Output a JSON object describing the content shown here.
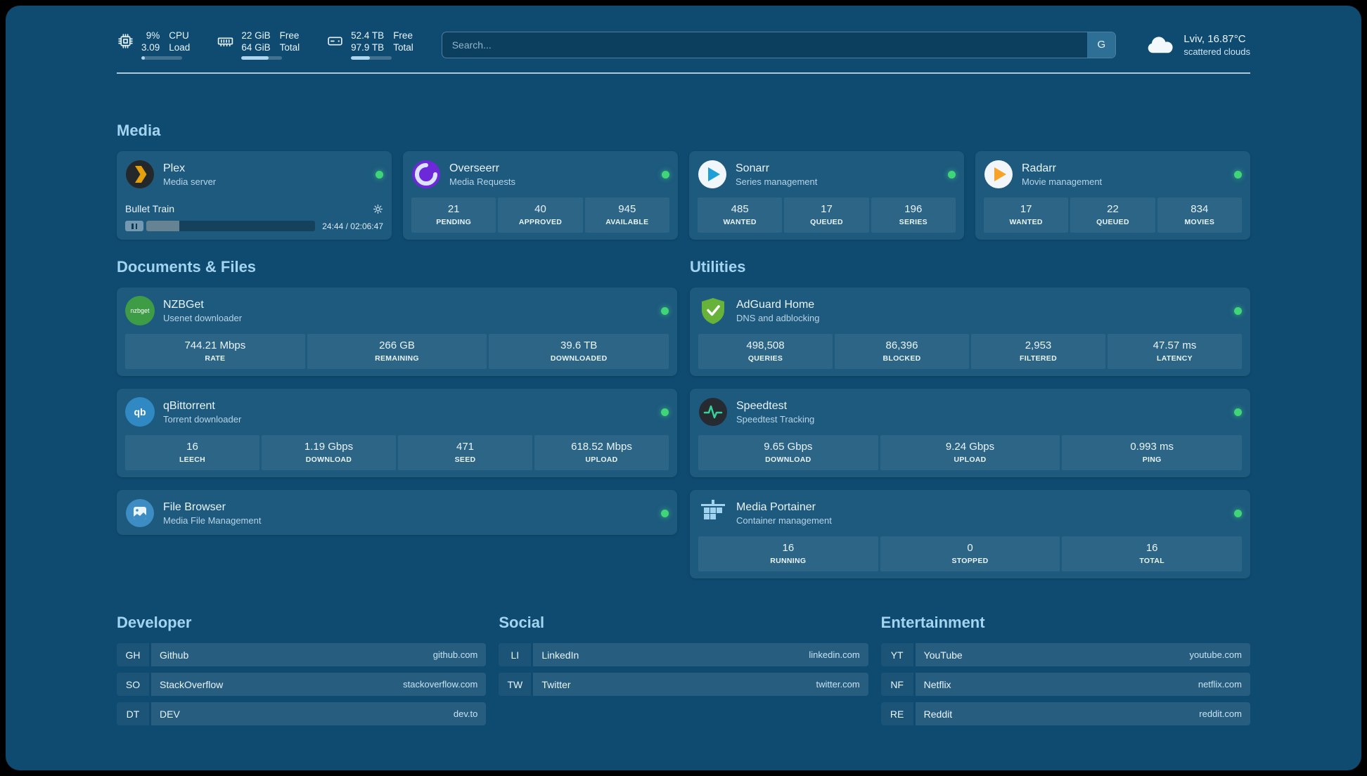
{
  "topbar": {
    "cpu": {
      "value1": "9%",
      "value2": "3.09",
      "label1": "CPU",
      "label2": "Load",
      "percent": 9
    },
    "memory": {
      "value1": "22 GiB",
      "value2": "64 GiB",
      "label1": "Free",
      "label2": "Total",
      "percent": 66
    },
    "disk": {
      "value1": "52.4 TB",
      "value2": "97.9 TB",
      "label1": "Free",
      "label2": "Total",
      "percent": 47
    },
    "search": {
      "placeholder": "Search...",
      "button_label": "G"
    },
    "weather": {
      "line1": "Lviv, 16.87°C",
      "line2": "scattered clouds"
    }
  },
  "media": {
    "title": "Media",
    "plex": {
      "name": "Plex",
      "desc": "Media server",
      "now_playing": "Bullet Train",
      "time": "24:44 / 02:06:47",
      "progress_percent": 19.5
    },
    "overseerr": {
      "name": "Overseerr",
      "desc": "Media Requests",
      "stats": [
        {
          "value": "21",
          "label": "PENDING"
        },
        {
          "value": "40",
          "label": "APPROVED"
        },
        {
          "value": "945",
          "label": "AVAILABLE"
        }
      ]
    },
    "sonarr": {
      "name": "Sonarr",
      "desc": "Series management",
      "stats": [
        {
          "value": "485",
          "label": "WANTED"
        },
        {
          "value": "17",
          "label": "QUEUED"
        },
        {
          "value": "196",
          "label": "SERIES"
        }
      ]
    },
    "radarr": {
      "name": "Radarr",
      "desc": "Movie management",
      "stats": [
        {
          "value": "17",
          "label": "WANTED"
        },
        {
          "value": "22",
          "label": "QUEUED"
        },
        {
          "value": "834",
          "label": "MOVIES"
        }
      ]
    }
  },
  "documents": {
    "title": "Documents & Files",
    "nzbget": {
      "name": "NZBGet",
      "desc": "Usenet downloader",
      "stats": [
        {
          "value": "744.21 Mbps",
          "label": "RATE"
        },
        {
          "value": "266 GB",
          "label": "REMAINING"
        },
        {
          "value": "39.6 TB",
          "label": "DOWNLOADED"
        }
      ]
    },
    "qbittorrent": {
      "name": "qBittorrent",
      "desc": "Torrent downloader",
      "stats": [
        {
          "value": "16",
          "label": "LEECH"
        },
        {
          "value": "1.19 Gbps",
          "label": "DOWNLOAD"
        },
        {
          "value": "471",
          "label": "SEED"
        },
        {
          "value": "618.52 Mbps",
          "label": "UPLOAD"
        }
      ]
    },
    "filebrowser": {
      "name": "File Browser",
      "desc": "Media File Management"
    }
  },
  "utilities": {
    "title": "Utilities",
    "adguard": {
      "name": "AdGuard Home",
      "desc": "DNS and adblocking",
      "stats": [
        {
          "value": "498,508",
          "label": "QUERIES"
        },
        {
          "value": "86,396",
          "label": "BLOCKED"
        },
        {
          "value": "2,953",
          "label": "FILTERED"
        },
        {
          "value": "47.57 ms",
          "label": "LATENCY"
        }
      ]
    },
    "speedtest": {
      "name": "Speedtest",
      "desc": "Speedtest Tracking",
      "stats": [
        {
          "value": "9.65 Gbps",
          "label": "DOWNLOAD"
        },
        {
          "value": "9.24 Gbps",
          "label": "UPLOAD"
        },
        {
          "value": "0.993 ms",
          "label": "PING"
        }
      ]
    },
    "portainer": {
      "name": "Media Portainer",
      "desc": "Container management",
      "stats": [
        {
          "value": "16",
          "label": "RUNNING"
        },
        {
          "value": "0",
          "label": "STOPPED"
        },
        {
          "value": "16",
          "label": "TOTAL"
        }
      ]
    }
  },
  "bookmarks": {
    "developer": {
      "title": "Developer",
      "items": [
        {
          "abbr": "GH",
          "name": "Github",
          "url": "github.com"
        },
        {
          "abbr": "SO",
          "name": "StackOverflow",
          "url": "stackoverflow.com"
        },
        {
          "abbr": "DT",
          "name": "DEV",
          "url": "dev.to"
        }
      ]
    },
    "social": {
      "title": "Social",
      "items": [
        {
          "abbr": "LI",
          "name": "LinkedIn",
          "url": "linkedin.com"
        },
        {
          "abbr": "TW",
          "name": "Twitter",
          "url": "twitter.com"
        }
      ]
    },
    "entertainment": {
      "title": "Entertainment",
      "items": [
        {
          "abbr": "YT",
          "name": "YouTube",
          "url": "youtube.com"
        },
        {
          "abbr": "NF",
          "name": "Netflix",
          "url": "netflix.com"
        },
        {
          "abbr": "RE",
          "name": "Reddit",
          "url": "reddit.com"
        }
      ]
    }
  },
  "icons": {
    "nzbget_text": "nzbget",
    "qbittorrent_text": "qb"
  },
  "colors": {
    "status_green": "#3fd578",
    "plex_orange": "#e5a00d",
    "section_title_blue": "#a3d4f0",
    "background": "#0f4b70",
    "card": "#1d5a7e"
  }
}
